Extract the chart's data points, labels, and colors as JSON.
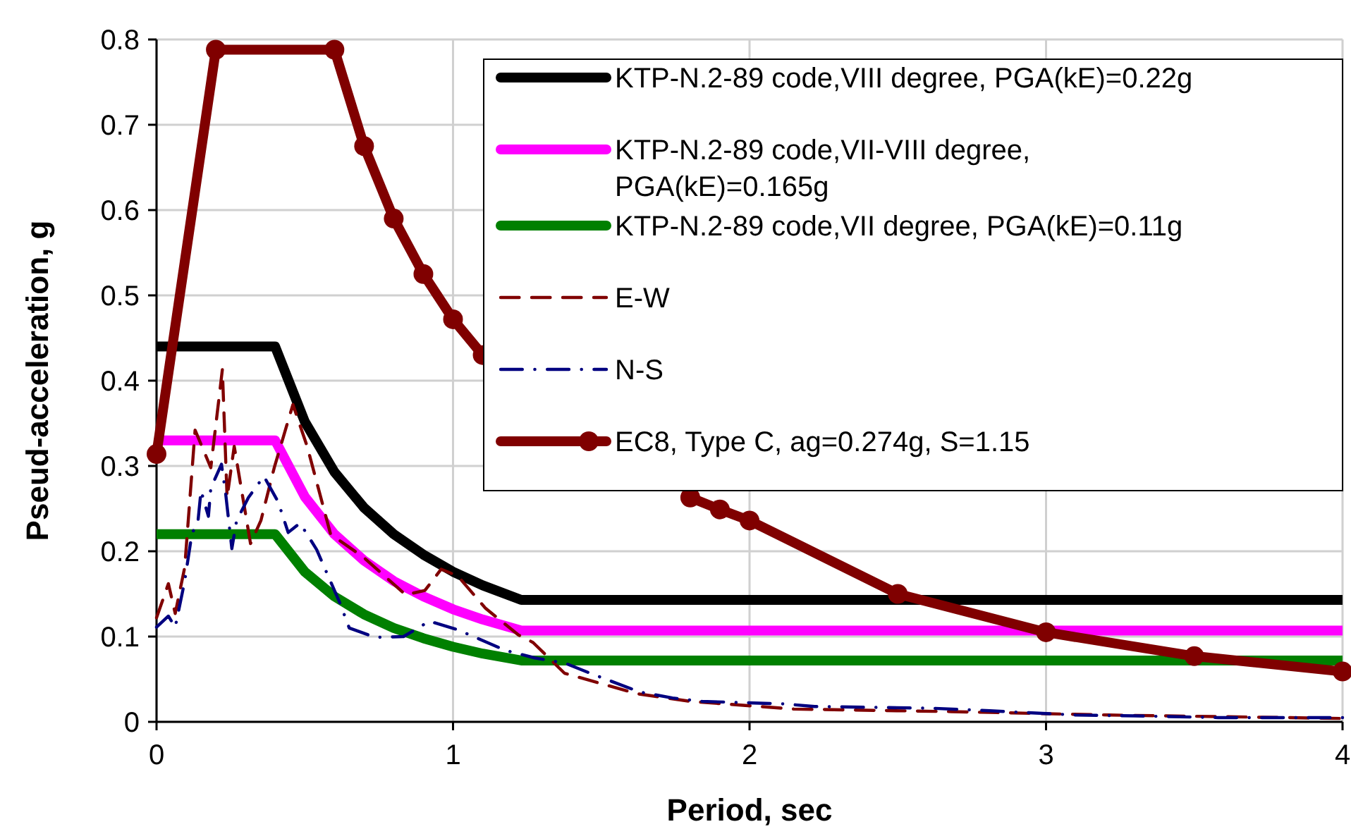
{
  "chart_data": {
    "type": "line",
    "xlabel": "Period, sec",
    "ylabel": "Pseud-acceleration, g",
    "xlim": [
      0,
      4
    ],
    "ylim": [
      0,
      0.8
    ],
    "xticks": [
      0,
      1,
      2,
      3,
      4
    ],
    "yticks": [
      0,
      0.1,
      0.2,
      0.3,
      0.4,
      0.5,
      0.6,
      0.7,
      0.8
    ],
    "grid": true,
    "legend": "top right",
    "series": [
      {
        "name": "KTP-N.2-89 code,VIII degree, PGA(kE)=0.22g",
        "color": "#000000",
        "marker": "none",
        "line_style": "solid",
        "x": [
          0,
          0.4,
          0.5,
          0.6,
          0.7,
          0.8,
          0.9,
          1.0,
          1.1,
          1.23,
          4
        ],
        "values": [
          0.44,
          0.44,
          0.352,
          0.293,
          0.251,
          0.22,
          0.196,
          0.176,
          0.16,
          0.143,
          0.143
        ]
      },
      {
        "name": "KTP-N.2-89 code,VII-VIII degree, PGA(kE)=0.165g",
        "color": "#ff00ff",
        "marker": "none",
        "line_style": "solid",
        "x": [
          0,
          0.4,
          0.5,
          0.6,
          0.7,
          0.8,
          0.9,
          1.0,
          1.1,
          1.23,
          4
        ],
        "values": [
          0.33,
          0.33,
          0.264,
          0.22,
          0.189,
          0.165,
          0.147,
          0.132,
          0.12,
          0.107,
          0.107
        ]
      },
      {
        "name": "KTP-N.2-89 code,VII degree, PGA(kE)=0.11g",
        "color": "#008000",
        "marker": "none",
        "line_style": "solid",
        "x": [
          0,
          0.4,
          0.5,
          0.6,
          0.7,
          0.8,
          0.9,
          1.0,
          1.1,
          1.23,
          4
        ],
        "values": [
          0.22,
          0.22,
          0.176,
          0.147,
          0.126,
          0.11,
          0.098,
          0.088,
          0.08,
          0.072,
          0.072
        ]
      },
      {
        "name": "E-W",
        "color": "#800000",
        "marker": "none",
        "line_style": "dashed",
        "x": [
          0,
          0.04,
          0.063,
          0.095,
          0.13,
          0.183,
          0.222,
          0.238,
          0.262,
          0.317,
          0.352,
          0.397,
          0.46,
          0.508,
          0.587,
          0.698,
          0.84,
          0.905,
          0.96,
          1.016,
          1.11,
          1.22,
          1.27,
          1.376,
          1.62,
          1.8,
          2.15,
          2.68,
          3.21,
          4.0
        ],
        "values": [
          0.122,
          0.162,
          0.127,
          0.181,
          0.342,
          0.298,
          0.413,
          0.263,
          0.323,
          0.209,
          0.236,
          0.298,
          0.372,
          0.323,
          0.22,
          0.193,
          0.149,
          0.154,
          0.179,
          0.171,
          0.133,
          0.102,
          0.093,
          0.057,
          0.033,
          0.024,
          0.015,
          0.012,
          0.008,
          0.004
        ]
      },
      {
        "name": "N-S",
        "color": "#000080",
        "marker": "none",
        "line_style": "dashdot",
        "x": [
          0,
          0.04,
          0.063,
          0.095,
          0.119,
          0.14,
          0.15,
          0.175,
          0.183,
          0.219,
          0.233,
          0.254,
          0.27,
          0.31,
          0.362,
          0.41,
          0.444,
          0.484,
          0.54,
          0.58,
          0.62,
          0.65,
          0.738,
          0.833,
          0.92,
          1.016,
          1.175,
          1.275,
          1.376,
          1.47,
          1.63,
          1.74,
          1.84,
          2.12,
          2.22,
          2.61,
          2.81,
          3.1,
          3.3,
          3.58,
          4.0
        ],
        "values": [
          0.111,
          0.124,
          0.111,
          0.165,
          0.22,
          0.236,
          0.271,
          0.241,
          0.274,
          0.302,
          0.268,
          0.203,
          0.236,
          0.263,
          0.288,
          0.258,
          0.222,
          0.233,
          0.202,
          0.17,
          0.138,
          0.11,
          0.099,
          0.1,
          0.118,
          0.108,
          0.084,
          0.075,
          0.069,
          0.056,
          0.035,
          0.028,
          0.024,
          0.021,
          0.018,
          0.016,
          0.013,
          0.008,
          0.007,
          0.005,
          0.005
        ]
      },
      {
        "name": "EC8, Type C, ag=0.274g, S=1.15",
        "color": "#800000",
        "marker": "circle",
        "line_style": "solid",
        "x": [
          0,
          0.2,
          0.6,
          0.7,
          0.8,
          0.9,
          1.0,
          1.1,
          1.2,
          1.3,
          1.4,
          1.5,
          1.6,
          1.7,
          1.8,
          1.9,
          2.0,
          2.5,
          3.0,
          3.5,
          4.0
        ],
        "values": [
          0.314,
          0.788,
          0.788,
          0.675,
          0.59,
          0.525,
          0.472,
          0.43,
          null,
          null,
          null,
          null,
          null,
          null,
          0.263,
          0.249,
          0.236,
          0.15,
          0.105,
          0.077,
          0.059
        ]
      }
    ]
  }
}
